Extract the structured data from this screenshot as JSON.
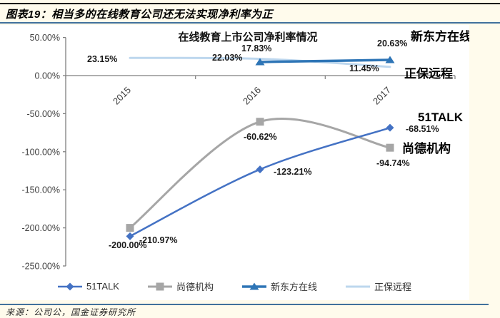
{
  "page": {
    "header_title": "图表19：相当多的在线教育公司还无法实现净利率为正",
    "source_note": "来源：公司公，国金证券研究所",
    "background_color": "#FFFBEC",
    "rule_color": "#41719C"
  },
  "chart_data": {
    "type": "line",
    "title": "在线教育上市公司净利率情况",
    "categories": [
      "2015",
      "2016",
      "2017"
    ],
    "xlabel": "",
    "ylabel": "",
    "yaxis": {
      "min": -250,
      "max": 50,
      "step": 50,
      "tick_labels": [
        "50.00%",
        "0.00%",
        "-50.00%",
        "-100.00%",
        "-150.00%",
        "-200.00%",
        "-250.00%"
      ]
    },
    "grid": false,
    "legend_position": "bottom",
    "series": [
      {
        "name": "51TALK",
        "color": "#4472C4",
        "marker": "diamond",
        "smooth": true,
        "values": [
          -210.97,
          -123.21,
          -68.51
        ],
        "point_labels": [
          "-210.97%",
          "-123.21%",
          "-68.51%"
        ]
      },
      {
        "name": "尚德机构",
        "color": "#A6A6A6",
        "marker": "square",
        "smooth": true,
        "values": [
          -200.0,
          -60.62,
          -94.74
        ],
        "point_labels": [
          "-200.00%",
          "-60.62%",
          "-94.74%"
        ]
      },
      {
        "name": "新东方在线",
        "color": "#2E75B6",
        "marker": "triangle",
        "smooth": true,
        "values": [
          null,
          17.83,
          20.63
        ],
        "point_labels": [
          null,
          "17.83%",
          "20.63%"
        ]
      },
      {
        "name": "正保远程",
        "color": "#BDD7EE",
        "marker": "none",
        "smooth": true,
        "values": [
          23.15,
          22.03,
          11.45
        ],
        "point_labels": [
          "23.15%",
          "22.03%",
          "11.45%"
        ]
      }
    ],
    "series_annotations": [
      "新东方在线",
      "正保远程",
      "51TALK",
      "尚德机构"
    ]
  }
}
